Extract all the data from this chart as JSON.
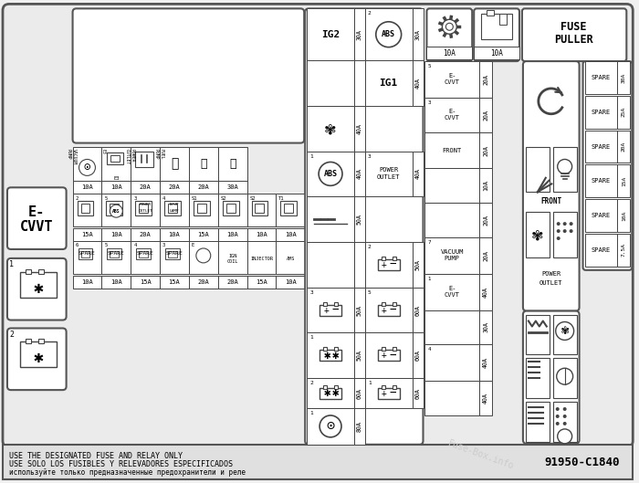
{
  "bg_color": "#f0f0f0",
  "white": "#ffffff",
  "ec": "#444444",
  "footer_line1": "USE THE DESIGNATED FUSE AND RELAY ONLY",
  "footer_line2": "USE SOLO LOS FUSIBLES Y RELEVADORES ESPECIFICADOS",
  "footer_line3": "используйте только предназначенные предохранители и реле",
  "part_number": "91950-C1840",
  "watermark": "Fuse-Box.info"
}
